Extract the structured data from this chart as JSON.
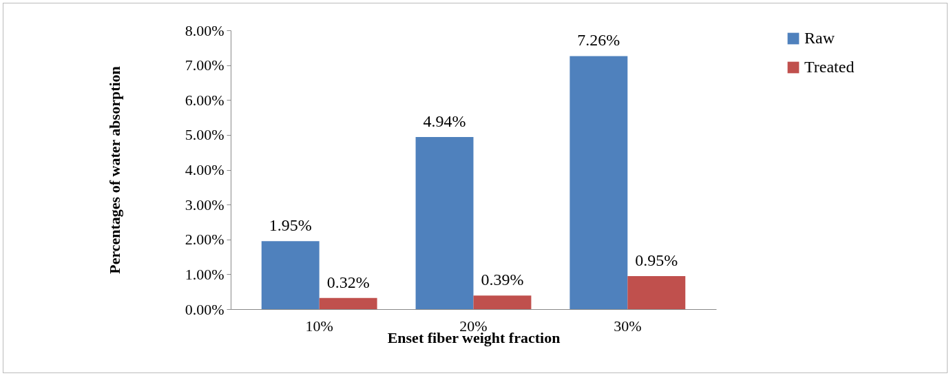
{
  "chart_data": {
    "type": "bar",
    "categories": [
      "10%",
      "20%",
      "30%"
    ],
    "xlabel": "Enset fiber weight fraction",
    "ylabel": "Percentages of water absorption",
    "series": [
      {
        "name": "Raw",
        "color": "#4f81bd",
        "values": [
          1.95,
          4.94,
          7.26
        ],
        "value_labels": [
          "1.95%",
          "4.94%",
          "7.26%"
        ]
      },
      {
        "name": "Treated",
        "color": "#c0504d",
        "values": [
          0.32,
          0.39,
          0.95
        ],
        "value_labels": [
          "0.32%",
          "0.39%",
          "0.95%"
        ]
      }
    ],
    "ylim": [
      0,
      8
    ],
    "yticks": [
      {
        "value": 0,
        "label": "0.00%"
      },
      {
        "value": 1,
        "label": "1.00%"
      },
      {
        "value": 2,
        "label": "2.00%"
      },
      {
        "value": 3,
        "label": "3.00%"
      },
      {
        "value": 4,
        "label": "4.00%"
      },
      {
        "value": 5,
        "label": "5.00%"
      },
      {
        "value": 6,
        "label": "6.00%"
      },
      {
        "value": 7,
        "label": "7.00%"
      },
      {
        "value": 8,
        "label": "8.00%"
      }
    ],
    "grid": false,
    "legend": "right"
  }
}
